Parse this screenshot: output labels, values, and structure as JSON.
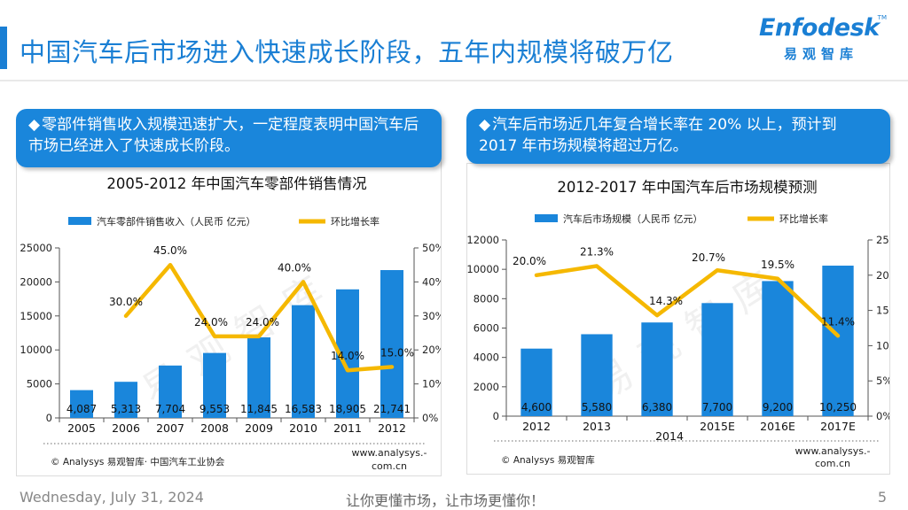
{
  "slide": {
    "title": "中国汽车后市场进入快速成长阶段，五年内规模将破万亿",
    "logo_text": "Enfodesk",
    "logo_tm": "TM",
    "logo_cn": "易观智库",
    "footer_date": "Wednesday, July 31, 2024",
    "footer_slogan": "让你更懂市场，让市场更懂你！",
    "page_number": "5",
    "watermark": "易观智库",
    "bullet_symbol": "◆"
  },
  "callouts": [
    {
      "text": "零部件销售收入规模迅速扩大，一定程度表明中国汽车后市场已经进入了快速成长阶段。"
    },
    {
      "text": "汽车后市场近几年复合增长率在 20% 以上，预计到 2017 年市场规模将超过万亿。"
    }
  ],
  "colors": {
    "accent": "#1a7fd4",
    "bar": "#1a86db",
    "line": "#f5b800",
    "callout": "#1a86db"
  },
  "chart_data": [
    {
      "type": "bar",
      "title": "2005-2012 年中国汽车零部件销售情况",
      "categories": [
        "2005",
        "2006",
        "2007",
        "2008",
        "2009",
        "2010",
        "2011",
        "2012"
      ],
      "series": [
        {
          "name": "汽车零部件销售收入（人民币 亿元）",
          "type": "bar",
          "axis": "left",
          "values": [
            4087,
            5313,
            7704,
            9553,
            11845,
            16583,
            18905,
            21741
          ],
          "labels": [
            "4,087",
            "5,313",
            "7,704",
            "9,553",
            "11,845",
            "16,583",
            "18,905",
            "21,741"
          ]
        },
        {
          "name": "环比增长率",
          "type": "line",
          "axis": "right",
          "values": [
            null,
            30.0,
            45.0,
            24.0,
            24.0,
            40.0,
            14.0,
            15.0
          ],
          "labels": [
            "",
            "30.0%",
            "45.0%",
            "24.0%",
            "24.0%",
            "40.0%",
            "14.0%",
            "15.0%"
          ]
        }
      ],
      "ylim": [
        0,
        25000
      ],
      "yticks": [
        0,
        5000,
        10000,
        15000,
        20000,
        25000
      ],
      "y2lim": [
        0,
        50
      ],
      "y2ticks": [
        "0%",
        "10%",
        "20%",
        "30%",
        "40%",
        "50%"
      ],
      "source": "© Analysys 易观智库· 中国汽车工业协会",
      "website": [
        "www.analysys.-",
        "com.cn"
      ]
    },
    {
      "type": "bar",
      "title": "2012-2017 年中国汽车后市场规模预测",
      "categories": [
        "2012",
        "2013",
        "2014",
        "2015E",
        "2016E",
        "2017E"
      ],
      "series": [
        {
          "name": "汽车后市场规模（人民币 亿元）",
          "type": "bar",
          "axis": "left",
          "values": [
            4600,
            5580,
            6380,
            7700,
            9200,
            10250
          ],
          "labels": [
            "4,600",
            "5,580",
            "6,380",
            "7,700",
            "9,200",
            "10,250"
          ]
        },
        {
          "name": "环比增长率",
          "type": "line",
          "axis": "right",
          "values": [
            20.0,
            21.3,
            14.3,
            20.7,
            19.5,
            11.4
          ],
          "labels": [
            "20.0%",
            "21.3%",
            "14.3%",
            "20.7%",
            "19.5%",
            "11.4%"
          ]
        }
      ],
      "ylim": [
        0,
        12000
      ],
      "yticks": [
        0,
        2000,
        4000,
        6000,
        8000,
        10000,
        12000
      ],
      "y2lim": [
        0,
        25
      ],
      "y2ticks": [
        "0%",
        "5%",
        "10%",
        "15%",
        "20%",
        "25%"
      ],
      "source": "© Analysys 易观智库",
      "website": [
        "www.analysys.-",
        "com.cn"
      ]
    }
  ]
}
